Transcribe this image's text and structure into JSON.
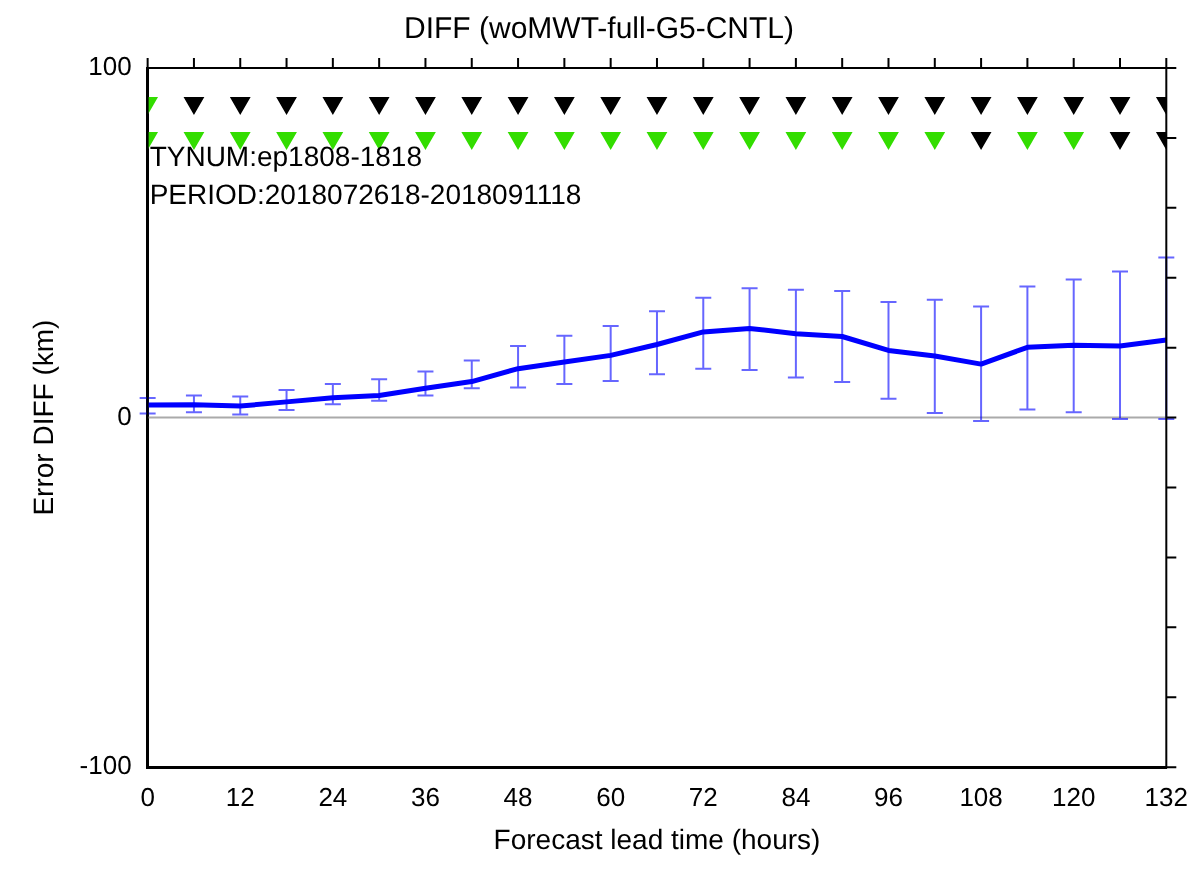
{
  "chart_data": {
    "type": "line",
    "title": "DIFF (woMWT-full-G5-CNTL)",
    "xlabel": "Forecast lead time (hours)",
    "ylabel": "Error DIFF (km)",
    "x": [
      0,
      6,
      12,
      18,
      24,
      30,
      36,
      42,
      48,
      54,
      60,
      66,
      72,
      78,
      84,
      90,
      96,
      102,
      108,
      114,
      120,
      126,
      132
    ],
    "xlim": [
      0,
      132
    ],
    "xticks": [
      0,
      {
        "value": 6,
        "label": null
      },
      12,
      {
        "value": 18,
        "label": null
      },
      24,
      {
        "value": 30,
        "label": null
      },
      36,
      {
        "value": 42,
        "label": null
      },
      48,
      {
        "value": 54,
        "label": null
      },
      60,
      {
        "value": 66,
        "label": null
      },
      72,
      {
        "value": 78,
        "label": null
      },
      84,
      {
        "value": 90,
        "label": null
      },
      96,
      {
        "value": 102,
        "label": null
      },
      108,
      {
        "value": 114,
        "label": null
      },
      120,
      {
        "value": 126,
        "label": null
      },
      132
    ],
    "ylim": [
      -100,
      100
    ],
    "yticks": [
      -100,
      {
        "value": -80,
        "label": null
      },
      {
        "value": -60,
        "label": null
      },
      {
        "value": -40,
        "label": null
      },
      {
        "value": -20,
        "label": null
      },
      0,
      {
        "value": 20,
        "label": null
      },
      {
        "value": 40,
        "label": null
      },
      {
        "value": 60,
        "label": null
      },
      {
        "value": 80,
        "label": null
      },
      100
    ],
    "grid": false,
    "legend": false,
    "ref_lines": [
      {
        "axis": "y",
        "value": 0,
        "color": "#aaaaaa"
      }
    ],
    "annotations": [
      "TYNUM:ep1808-1818",
      "PERIOD:2018072618-2018091118"
    ],
    "series": [
      {
        "color": "#0000ff",
        "marker": "none",
        "values": [
          3.6,
          3.7,
          3.3,
          4.5,
          5.7,
          6.3,
          8.4,
          10.3,
          14,
          15.9,
          17.8,
          20.9,
          24.5,
          25.5,
          24,
          23.2,
          19.2,
          17.6,
          15.3,
          20.1,
          20.7,
          20.5,
          22.2
        ],
        "errors": [
          [
            1.2,
            5.6
          ],
          [
            1.5,
            6.3
          ],
          [
            0.9,
            6
          ],
          [
            2.2,
            7.9
          ],
          [
            3.8,
            9.6
          ],
          [
            4.8,
            11
          ],
          [
            6.3,
            13.2
          ],
          [
            8.4,
            16.3
          ],
          [
            8.6,
            20.5
          ],
          [
            9.6,
            23.4
          ],
          [
            10.5,
            26.2
          ],
          [
            12.4,
            30.4
          ],
          [
            14,
            34.3
          ],
          [
            13.6,
            37
          ],
          [
            11.5,
            36.6
          ],
          [
            10.2,
            36.2
          ],
          [
            5.4,
            33.1
          ],
          [
            1.3,
            33.7
          ],
          [
            -1,
            31.8
          ],
          [
            2.3,
            37.5
          ],
          [
            1.5,
            39.5
          ],
          [
            -0.4,
            41.8
          ],
          [
            -0.4,
            45.8
          ]
        ]
      },
      {
        "type": "scatter",
        "marker": "triangle",
        "values": [
          90,
          90,
          90,
          90,
          90,
          90,
          90,
          90,
          90,
          90,
          90,
          90,
          90,
          90,
          90,
          90,
          90,
          90,
          90,
          90,
          90,
          90,
          90
        ],
        "colors": [
          "#33dd00",
          "#000000",
          "#000000",
          "#000000",
          "#000000",
          "#000000",
          "#000000",
          "#000000",
          "#000000",
          "#000000",
          "#000000",
          "#000000",
          "#000000",
          "#000000",
          "#000000",
          "#000000",
          "#000000",
          "#000000",
          "#000000",
          "#000000",
          "#000000",
          "#000000",
          "#000000"
        ]
      },
      {
        "type": "scatter",
        "marker": "triangle",
        "values": [
          80,
          80,
          80,
          80,
          80,
          80,
          80,
          80,
          80,
          80,
          80,
          80,
          80,
          80,
          80,
          80,
          80,
          80,
          80,
          80,
          80,
          80,
          80
        ],
        "colors": [
          "#33dd00",
          "#33dd00",
          "#33dd00",
          "#33dd00",
          "#33dd00",
          "#33dd00",
          "#33dd00",
          "#33dd00",
          "#33dd00",
          "#33dd00",
          "#33dd00",
          "#33dd00",
          "#33dd00",
          "#33dd00",
          "#33dd00",
          "#33dd00",
          "#33dd00",
          "#33dd00",
          "#000000",
          "#33dd00",
          "#33dd00",
          "#000000",
          "#000000"
        ]
      }
    ]
  }
}
